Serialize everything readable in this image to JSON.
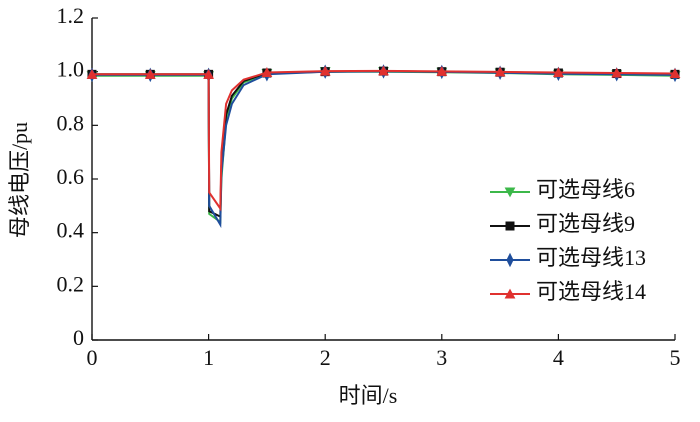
{
  "chart_data": {
    "type": "line",
    "x_label": "时间/s",
    "y_label": "母线电压/pu",
    "x": [
      0,
      0.5,
      1,
      1.005,
      1.1,
      1.11,
      1.15,
      1.2,
      1.3,
      1.5,
      2,
      2.5,
      3,
      3.5,
      4,
      4.5,
      5
    ],
    "series": [
      {
        "name": "可选母线6",
        "color": "#3cb84a",
        "marker": "tri-down",
        "values": [
          0.985,
          0.985,
          0.985,
          0.47,
          0.44,
          0.6,
          0.82,
          0.9,
          0.96,
          0.993,
          1.0,
          1.0,
          0.998,
          0.995,
          0.99,
          0.988,
          0.985
        ]
      },
      {
        "name": "可选母线9",
        "color": "#111111",
        "marker": "square",
        "values": [
          0.99,
          0.99,
          0.99,
          0.48,
          0.46,
          0.65,
          0.84,
          0.91,
          0.965,
          0.995,
          1.0,
          1.002,
          1.0,
          0.998,
          0.995,
          0.993,
          0.99
        ]
      },
      {
        "name": "可选母线13",
        "color": "#1f4e9c",
        "marker": "diamond",
        "values": [
          0.988,
          0.988,
          0.988,
          0.5,
          0.43,
          0.62,
          0.8,
          0.88,
          0.95,
          0.99,
          1.0,
          1.001,
          0.999,
          0.996,
          0.992,
          0.99,
          0.988
        ]
      },
      {
        "name": "可选母线14",
        "color": "#e0312f",
        "marker": "tri-up",
        "values": [
          0.99,
          0.99,
          0.99,
          0.55,
          0.49,
          0.7,
          0.88,
          0.93,
          0.97,
          0.997,
          1.002,
          1.003,
          1.001,
          0.999,
          0.997,
          0.995,
          0.993
        ]
      }
    ],
    "marker_every": 0.5,
    "xlim": [
      0,
      5
    ],
    "xticks": [
      0,
      1,
      2,
      3,
      4,
      5
    ],
    "ylim": [
      0,
      1.2
    ],
    "yticks": [
      0,
      0.2,
      0.4,
      0.6,
      0.8,
      {
        "value": 1,
        "label": "1.0"
      },
      1.2
    ],
    "legend": "lower-right"
  }
}
